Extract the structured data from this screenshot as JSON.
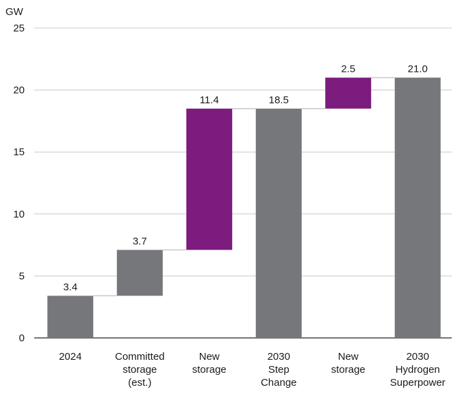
{
  "chart_data": {
    "type": "bar",
    "subtype": "waterfall",
    "ylabel": "GW",
    "ylim": [
      0,
      25
    ],
    "yticks": [
      0,
      5,
      10,
      15,
      20,
      25
    ],
    "grid": true,
    "categories": [
      [
        "2024"
      ],
      [
        "Committed",
        "storage",
        "(est.)"
      ],
      [
        "New",
        "storage"
      ],
      [
        "2030",
        "Step",
        "Change"
      ],
      [
        "New",
        "storage"
      ],
      [
        "2030",
        "Hydrogen",
        "Superpower"
      ]
    ],
    "bars": [
      {
        "base": 0,
        "value": 3.4,
        "label": "3.4",
        "kind": "total"
      },
      {
        "base": 3.4,
        "value": 3.7,
        "label": "3.7",
        "kind": "total"
      },
      {
        "base": 7.1,
        "value": 11.4,
        "label": "11.4",
        "kind": "increment"
      },
      {
        "base": 0,
        "value": 18.5,
        "label": "18.5",
        "kind": "total"
      },
      {
        "base": 18.5,
        "value": 2.5,
        "label": "2.5",
        "kind": "increment"
      },
      {
        "base": 0,
        "value": 21.0,
        "label": "21.0",
        "kind": "total"
      }
    ],
    "colors": {
      "total": "#76777b",
      "increment": "#7b1c7e",
      "grid": "#c8c8c8",
      "axis": "#222222",
      "connector": "#c8c8c8"
    }
  }
}
